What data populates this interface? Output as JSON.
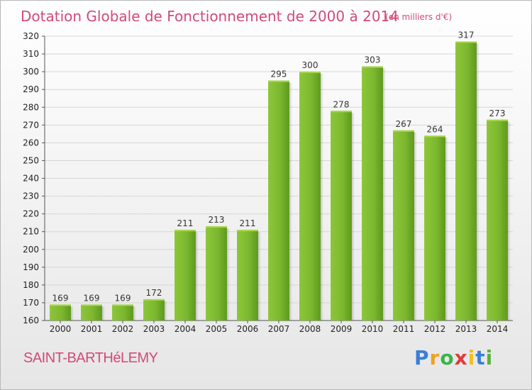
{
  "chart_data": {
    "type": "bar",
    "title": "Dotation Globale de Fonctionnement de 2000 à 2014",
    "subtitle": "(en milliers d'€)",
    "xlabel": "",
    "ylabel": "",
    "categories": [
      "2000",
      "2001",
      "2002",
      "2003",
      "2004",
      "2005",
      "2006",
      "2007",
      "2008",
      "2009",
      "2010",
      "2011",
      "2012",
      "2013",
      "2014"
    ],
    "values": [
      169,
      169,
      169,
      172,
      211,
      213,
      211,
      295,
      300,
      278,
      303,
      267,
      264,
      317,
      273
    ],
    "ylim": [
      160,
      320
    ],
    "yticks": [
      160,
      170,
      180,
      190,
      200,
      210,
      220,
      230,
      240,
      250,
      260,
      270,
      280,
      290,
      300,
      310,
      320
    ],
    "grid": true,
    "legend": "none",
    "bar_color": "#7cb82f",
    "bar_color_light": "#a7d64b",
    "bar_color_dark": "#5e9a1c",
    "grid_color": "#d6d6d6"
  },
  "footer": {
    "commune": "SAINT-BARTHéLEMY",
    "brand_letters": [
      "P",
      "r",
      "o",
      "x",
      "i",
      "t",
      "i"
    ],
    "brand_colors": [
      "#3a7fd5",
      "#f0a020",
      "#3ab44a",
      "#e23a3a",
      "#f0c020",
      "#3a7fd5",
      "#5ab43a"
    ]
  },
  "colors": {
    "title": "#d2497a"
  }
}
